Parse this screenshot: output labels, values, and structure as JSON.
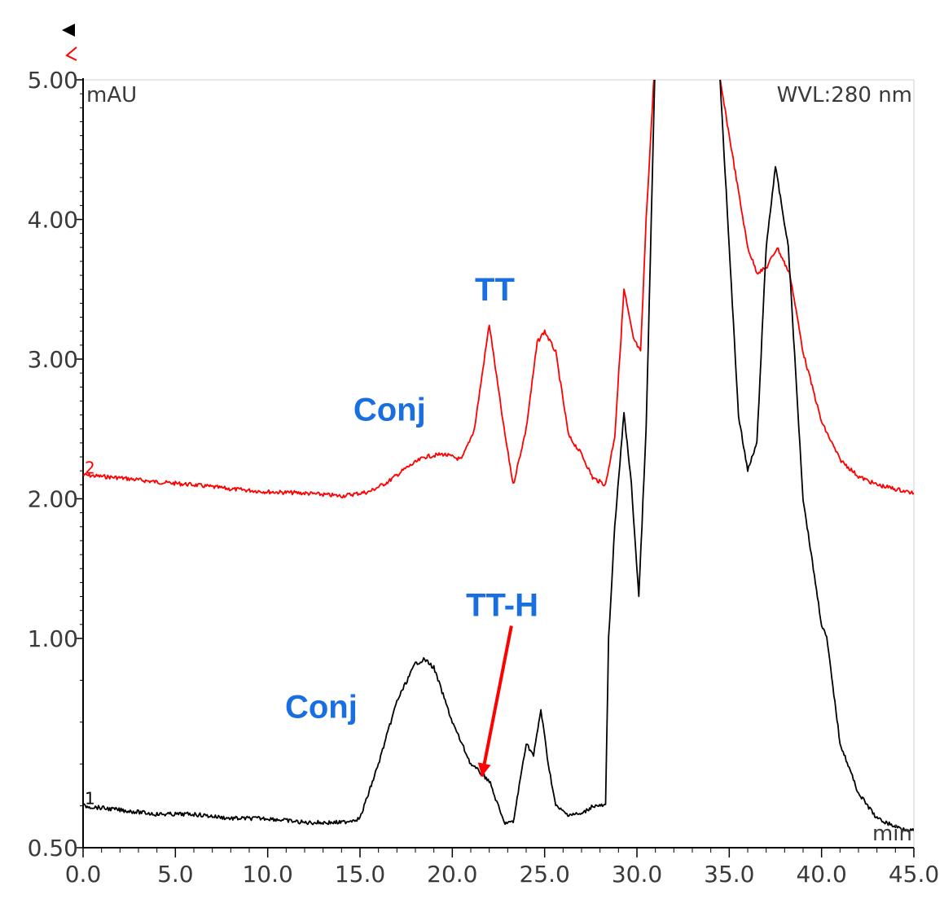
{
  "chart_data": {
    "type": "line",
    "title": "",
    "xlabel": "min",
    "ylabel": "mAU",
    "wavelength_label": "WVL:280 nm",
    "xlim": [
      0,
      45
    ],
    "ylim": [
      0.5,
      5.0
    ],
    "x_ticks": [
      "0.0",
      "5.0",
      "10.0",
      "15.0",
      "20.0",
      "25.0",
      "30.0",
      "35.0",
      "40.0",
      "45.0"
    ],
    "y_ticks": [
      {
        "value": 5.0,
        "label": "5.00"
      },
      {
        "value": 4.0,
        "label": "4.00"
      },
      {
        "value": 3.0,
        "label": "3.00"
      },
      {
        "value": 2.0,
        "label": "2.00"
      },
      {
        "value": 1.0,
        "label": "1.00"
      },
      {
        "value": 0.5,
        "label": "0.50"
      }
    ],
    "series": [
      {
        "trace_number": "2",
        "color": "#ff0000",
        "x": [
          0,
          2,
          4,
          6,
          8,
          10,
          12,
          14,
          15.5,
          16.5,
          17.5,
          18.5,
          19.5,
          20.5,
          21.2,
          22.0,
          22.8,
          23.3,
          24.0,
          24.6,
          25.0,
          25.6,
          26.3,
          27.0,
          27.6,
          28.3,
          28.8,
          29.3,
          29.8,
          30.2,
          30.5,
          31.0,
          34.0,
          34.5,
          35.0,
          35.5,
          36.0,
          36.5,
          37.0,
          37.6,
          38.3,
          39.0,
          40.0,
          41.0,
          42.0,
          43.0,
          44.0,
          45.0
        ],
        "y": [
          2.17,
          2.15,
          2.12,
          2.1,
          2.07,
          2.05,
          2.04,
          2.02,
          2.05,
          2.12,
          2.22,
          2.3,
          2.32,
          2.28,
          2.5,
          3.25,
          2.5,
          2.1,
          2.5,
          3.12,
          3.2,
          3.05,
          2.45,
          2.32,
          2.15,
          2.1,
          2.45,
          3.5,
          3.15,
          3.05,
          4.0,
          5.2,
          5.2,
          5.0,
          4.6,
          4.2,
          3.8,
          3.62,
          3.65,
          3.8,
          3.6,
          3.05,
          2.55,
          2.28,
          2.16,
          2.1,
          2.07,
          2.04
        ]
      },
      {
        "trace_number": "1",
        "color": "#000000",
        "x": [
          0,
          2,
          4,
          6,
          8,
          10,
          12,
          14,
          15.0,
          16.0,
          17.0,
          18.0,
          18.5,
          19.0,
          20.0,
          21.0,
          22.0,
          22.8,
          23.3,
          24.0,
          24.4,
          24.8,
          25.2,
          25.6,
          26.2,
          27.0,
          27.6,
          28.3,
          28.8,
          29.3,
          29.7,
          30.1,
          30.5,
          31.0,
          34.0,
          34.5,
          35.0,
          35.5,
          36.0,
          36.5,
          37.0,
          37.5,
          38.2,
          39.0,
          40.0,
          41.0,
          42.0,
          43.0,
          44.0,
          45.0
        ],
        "y": [
          0.6,
          0.59,
          0.58,
          0.58,
          0.57,
          0.57,
          0.56,
          0.56,
          0.57,
          0.7,
          0.85,
          0.94,
          0.95,
          0.93,
          0.8,
          0.7,
          0.66,
          0.56,
          0.56,
          0.75,
          0.72,
          0.83,
          0.7,
          0.6,
          0.58,
          0.58,
          0.6,
          0.6,
          1.8,
          2.62,
          2.1,
          1.3,
          2.5,
          5.2,
          5.2,
          5.0,
          3.8,
          2.6,
          2.2,
          2.4,
          3.8,
          4.38,
          3.8,
          2.0,
          1.1,
          0.75,
          0.63,
          0.57,
          0.55,
          0.54
        ]
      }
    ],
    "annotations": [
      {
        "text": "TT",
        "x": 22.3,
        "y": 3.42
      },
      {
        "text": "Conj",
        "x": 16.6,
        "y": 2.56
      },
      {
        "text": "TT-H",
        "x": 22.7,
        "y": 1.16
      },
      {
        "text": "Conj",
        "x": 12.9,
        "y": 0.81
      }
    ],
    "arrow": {
      "from_x": 23.2,
      "from_y": 1.09,
      "to_x": 21.6,
      "to_y": 0.67,
      "color": "#ff0000"
    }
  }
}
